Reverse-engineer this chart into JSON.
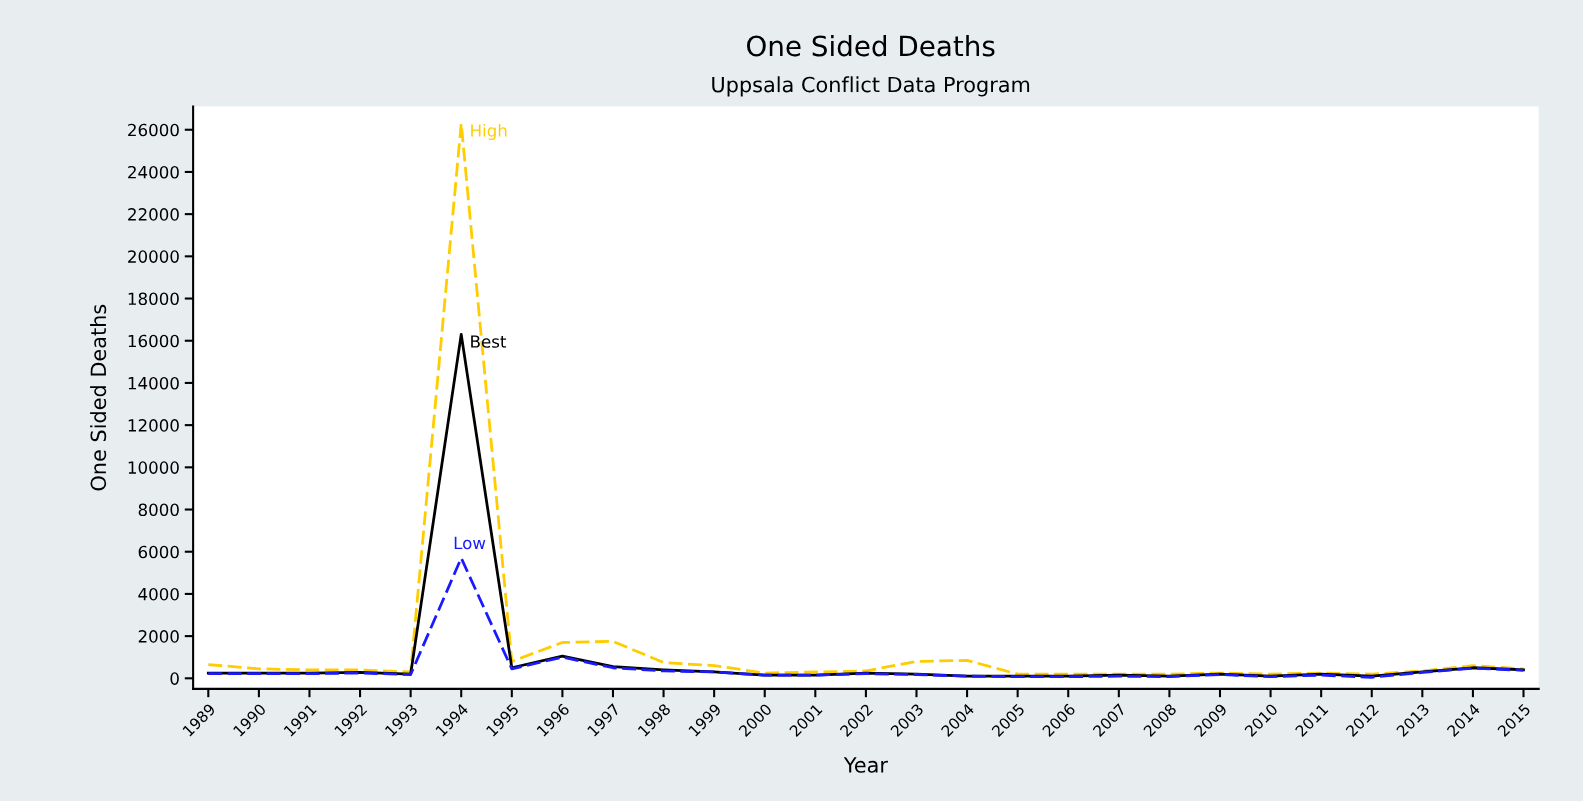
{
  "chart_data": {
    "type": "line",
    "title": "One Sided Deaths",
    "subtitle": "Uppsala Conflict Data Program",
    "xlabel": "Year",
    "ylabel": "One Sided Deaths",
    "categories": [
      "1989",
      "1990",
      "1991",
      "1992",
      "1993",
      "1994",
      "1995",
      "1996",
      "1997",
      "1998",
      "1999",
      "2000",
      "2001",
      "2002",
      "2003",
      "2004",
      "2005",
      "2006",
      "2007",
      "2008",
      "2009",
      "2010",
      "2011",
      "2012",
      "2013",
      "2014",
      "2015"
    ],
    "series": [
      {
        "name": "High",
        "color": "#ffcc00",
        "line_style": "dashed",
        "values": [
          650,
          450,
          400,
          400,
          300,
          26300,
          800,
          1700,
          1750,
          750,
          600,
          250,
          300,
          350,
          800,
          850,
          200,
          200,
          200,
          200,
          250,
          200,
          250,
          200,
          350,
          600,
          450
        ]
      },
      {
        "name": "Best",
        "color": "#000000",
        "line_style": "solid",
        "values": [
          250,
          250,
          250,
          280,
          200,
          16300,
          500,
          1050,
          550,
          400,
          300,
          150,
          150,
          250,
          200,
          100,
          100,
          100,
          150,
          100,
          200,
          100,
          200,
          100,
          300,
          500,
          400
        ]
      },
      {
        "name": "Low",
        "color": "#1a1aff",
        "line_style": "dashed",
        "values": [
          220,
          220,
          220,
          250,
          180,
          5700,
          450,
          1000,
          500,
          350,
          300,
          150,
          150,
          220,
          180,
          100,
          80,
          80,
          100,
          80,
          180,
          80,
          150,
          50,
          280,
          480,
          380
        ]
      }
    ],
    "ylim": [
      -500,
      27100
    ],
    "yticks": [
      0,
      2000,
      4000,
      6000,
      8000,
      10000,
      12000,
      14000,
      16000,
      18000,
      20000,
      22000,
      24000,
      26000
    ],
    "grid": false,
    "legend": false,
    "marker": "none"
  }
}
